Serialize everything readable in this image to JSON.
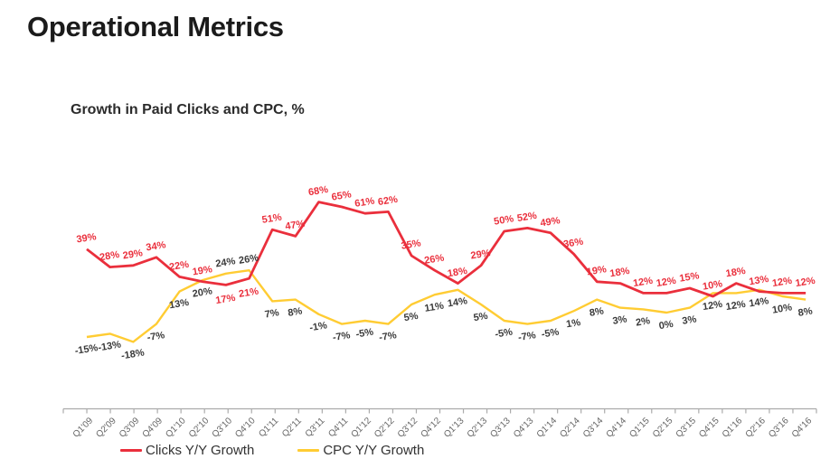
{
  "page": {
    "title": "Operational Metrics",
    "subtitle": "Growth in Paid Clicks and CPC, %"
  },
  "legend": [
    {
      "label": "Clicks Y/Y Growth",
      "color": "#EA2F3C"
    },
    {
      "label": "CPC Y/Y Growth",
      "color": "#FFCC33"
    }
  ],
  "colors": {
    "clicks_line": "#EA2F3C",
    "cpc_line": "#FFCC33",
    "clicks_label": "#EA2F3C",
    "cpc_label": "#3A3A3A",
    "axis": "#ABABAB",
    "axis_text": "#666666"
  },
  "chart_data": {
    "type": "line",
    "title": "Growth in Paid Clicks and CPC, %",
    "categories": [
      "Q1'09",
      "Q2'09",
      "Q3'09",
      "Q4'09",
      "Q1'10",
      "Q2'10",
      "Q3'10",
      "Q4'10",
      "Q1'11",
      "Q2'11",
      "Q3'11",
      "Q4'11",
      "Q1'12",
      "Q2'12",
      "Q3'12",
      "Q4'12",
      "Q1'13",
      "Q2'13",
      "Q3'13",
      "Q4'13",
      "Q1'14",
      "Q2'14",
      "Q3'14",
      "Q4'14",
      "Q1'15",
      "Q2'15",
      "Q3'15",
      "Q4'15",
      "Q1'16",
      "Q2'16",
      "Q3'16",
      "Q4'16"
    ],
    "series": [
      {
        "name": "Clicks Y/Y Growth",
        "values": [
          39,
          28,
          29,
          34,
          22,
          19,
          17,
          21,
          51,
          47,
          68,
          65,
          61,
          62,
          35,
          26,
          18,
          29,
          50,
          52,
          49,
          36,
          19,
          18,
          12,
          12,
          15,
          10,
          18,
          13,
          12,
          12
        ]
      },
      {
        "name": "CPC Y/Y Growth",
        "values": [
          -15,
          -13,
          -18,
          -7,
          13,
          20,
          24,
          26,
          7,
          8,
          -1,
          -7,
          -5,
          -7,
          5,
          11,
          14,
          5,
          -5,
          -7,
          -5,
          1,
          8,
          3,
          2,
          0,
          3,
          12,
          12,
          14,
          10,
          8
        ]
      }
    ],
    "unit": "%",
    "ylim": [
      -30,
      80
    ],
    "grid": false,
    "y_axis_visible": false,
    "x_axis_labels_rotation": -45,
    "data_labels": "every point, value + %",
    "legend_position": "bottom"
  }
}
